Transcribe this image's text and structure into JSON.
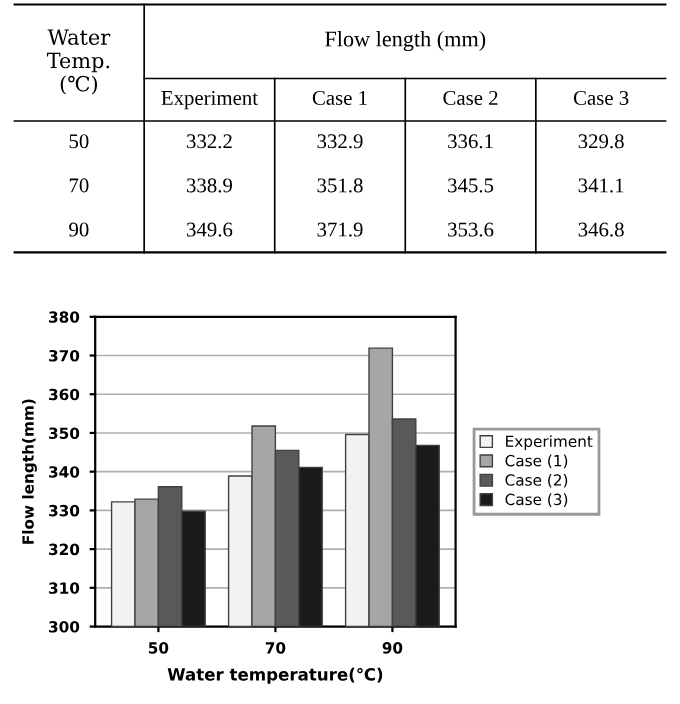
{
  "chart_data": {
    "type": "bar",
    "xlabel": "Water temperature(℃)",
    "ylabel": "Flow length(mm)",
    "annotations": [
      "Water Temp. (℃)",
      "Flow length (mm)",
      "Experiment",
      "Case 1",
      "Case 2",
      "Case 3",
      "50",
      "332.2",
      "332.9",
      "336.1",
      "329.8",
      "70",
      "338.9",
      "351.8",
      "345.5",
      "341.1",
      "90",
      "349.6",
      "371.9",
      "353.6",
      "346.8"
    ],
    "categories": [
      "50",
      "70",
      "90"
    ],
    "series": [
      {
        "name": "Experiment",
        "color": "#f2f2f2",
        "values": [
          332.2,
          338.9,
          349.6
        ]
      },
      {
        "name": "Case (1)",
        "color": "#a6a6a6",
        "values": [
          332.9,
          351.8,
          371.9
        ]
      },
      {
        "name": "Case (2)",
        "color": "#595959",
        "values": [
          336.1,
          345.5,
          353.6
        ]
      },
      {
        "name": "Case (3)",
        "color": "#1a1a1a",
        "values": [
          329.8,
          341.1,
          346.8
        ]
      }
    ],
    "ylim": [
      300,
      380
    ],
    "yticks": [
      300,
      310,
      320,
      330,
      340,
      350,
      360,
      370,
      380
    ],
    "grid": "y",
    "legend": "right"
  }
}
